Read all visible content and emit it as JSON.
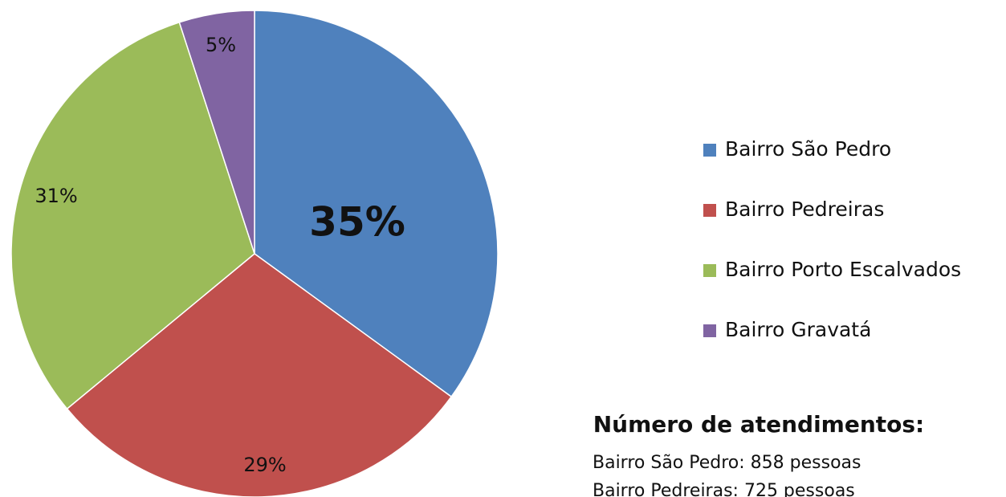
{
  "chart_data": {
    "type": "pie",
    "categories": [
      "Bairro São Pedro",
      "Bairro Pedreiras",
      "Bairro Porto Escalvados",
      "Bairro Gravatá"
    ],
    "values": [
      35,
      29,
      31,
      5
    ],
    "value_labels": [
      "35%",
      "29%",
      "31%",
      "5%"
    ],
    "colors": [
      "#4f81bd",
      "#c0504d",
      "#9bbb59",
      "#8064a2"
    ],
    "legend": "right",
    "annotation_title": "Número de atendimentos:",
    "annotations": [
      "Bairro São Pedro: 858 pessoas",
      "Bairro Pedreiras: 725 pessoas"
    ]
  }
}
